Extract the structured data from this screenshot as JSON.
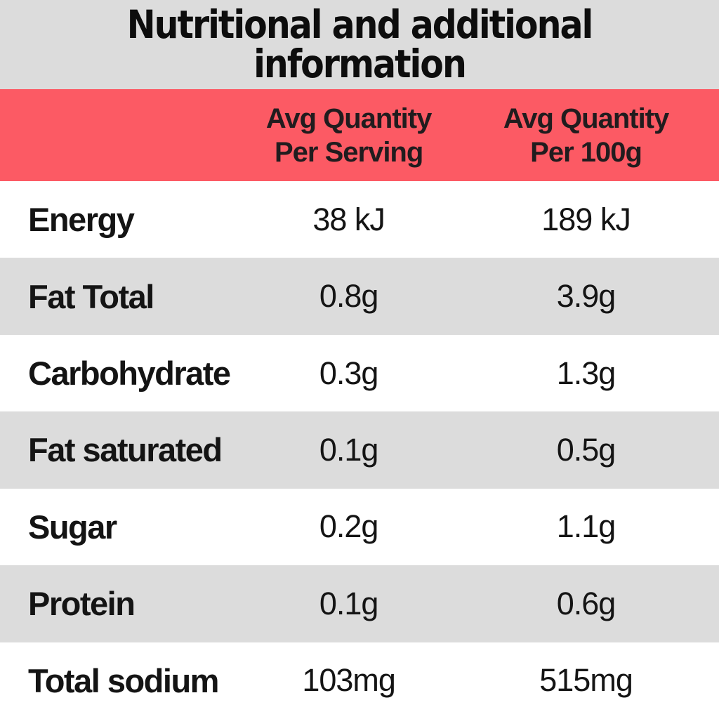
{
  "title": {
    "line1": "Nutritional and additional",
    "line2": "information"
  },
  "table": {
    "header": {
      "col_serving": {
        "line1": "Avg Quantity",
        "line2": "Per Serving"
      },
      "col_100g": {
        "line1": "Avg Quantity",
        "line2": "Per 100g"
      }
    },
    "rows": [
      {
        "label": "Energy",
        "per_serving": "38 kJ",
        "per_100g": "189 kJ"
      },
      {
        "label": "Fat Total",
        "per_serving": "0.8g",
        "per_100g": "3.9g"
      },
      {
        "label": "Carbohydrate",
        "per_serving": "0.3g",
        "per_100g": "1.3g"
      },
      {
        "label": "Fat saturated",
        "per_serving": "0.1g",
        "per_100g": "0.5g"
      },
      {
        "label": "Sugar",
        "per_serving": "0.2g",
        "per_100g": "1.1g"
      },
      {
        "label": "Protein",
        "per_serving": "0.1g",
        "per_100g": "0.6g"
      },
      {
        "label": "Total sodium",
        "per_serving": "103mg",
        "per_100g": "515mg"
      }
    ]
  },
  "colors": {
    "header_red": "#FC5A64",
    "band_gray": "#DCDCDC",
    "row_alt_gray": "#DCDCDC",
    "text_dark": "#141414"
  }
}
